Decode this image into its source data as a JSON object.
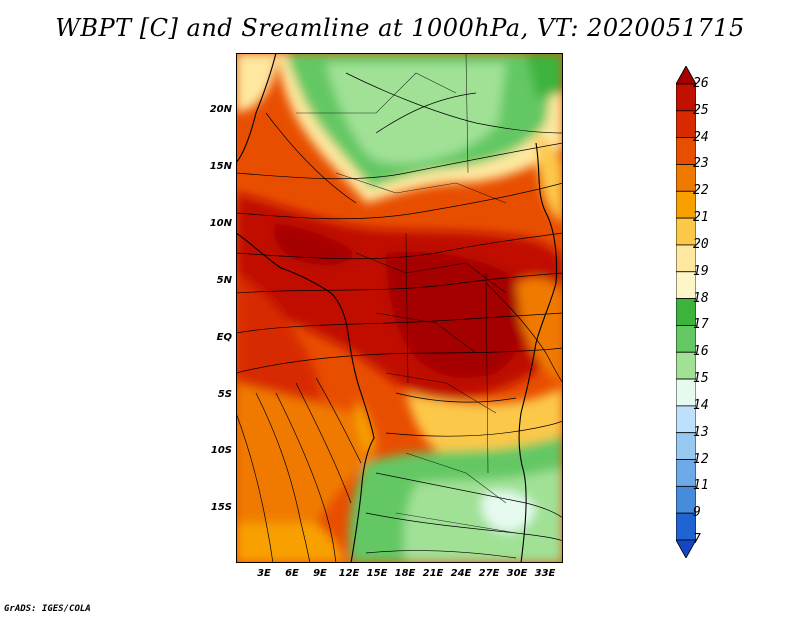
{
  "title": "WBPT [C] and Sreamline at 1000hPa, VT: 2020051715",
  "credit": "GrADS: IGES/COLA",
  "map": {
    "lat_ticks": [
      "20N",
      "15N",
      "10N",
      "5N",
      "EQ",
      "5S",
      "10S",
      "15S"
    ],
    "lon_ticks": [
      "3E",
      "6E",
      "9E",
      "12E",
      "15E",
      "18E",
      "21E",
      "24E",
      "27E",
      "30E",
      "33E"
    ],
    "lat_range": [
      -20,
      25
    ],
    "lon_range": [
      0,
      35
    ]
  },
  "colorbar": {
    "labels": [
      "26",
      "25",
      "24",
      "23",
      "22",
      "21",
      "20",
      "19",
      "18",
      "17",
      "16",
      "15",
      "14",
      "13",
      "12",
      "11",
      "9",
      "7"
    ],
    "colors": [
      "#a50000",
      "#c01000",
      "#d82a00",
      "#e84e00",
      "#f07a00",
      "#f8a000",
      "#fcc848",
      "#fee8a0",
      "#fff6c8",
      "#3cb43c",
      "#64c864",
      "#a0e196",
      "#e6faf0",
      "#bee0fa",
      "#96c8f0",
      "#6eaae8",
      "#468cdc",
      "#2064d2",
      "#1446c8"
    ]
  }
}
